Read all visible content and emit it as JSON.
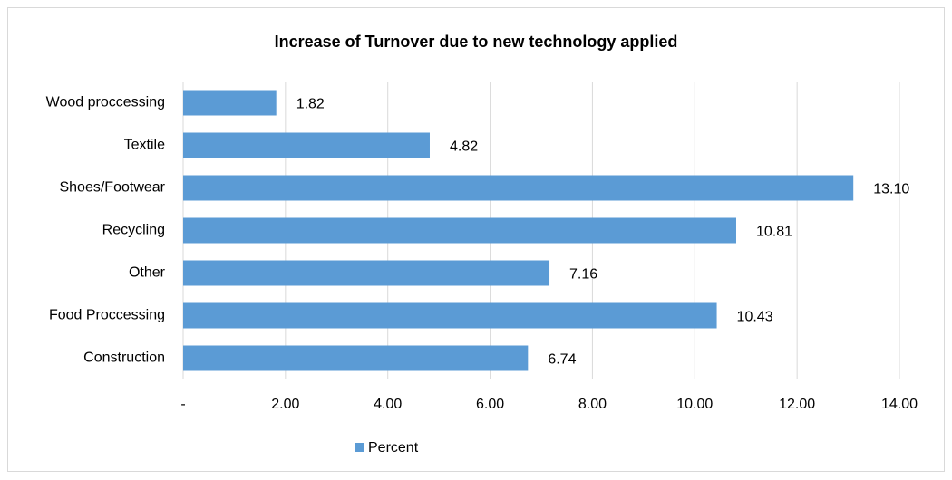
{
  "chart_data": {
    "type": "bar",
    "orientation": "horizontal",
    "title": "Increase of Turnover due to new technology applied",
    "categories": [
      "Wood proccessing",
      "Textile",
      "Shoes/Footwear",
      "Recycling",
      "Other",
      "Food Proccessing",
      "Construction"
    ],
    "series": [
      {
        "name": "Percent",
        "color": "#5b9bd5",
        "values": [
          1.82,
          4.82,
          13.1,
          10.81,
          7.16,
          10.43,
          6.74
        ],
        "value_labels": [
          "1.82",
          "4.82",
          "13.10",
          "10.81",
          "7.16",
          "10.43",
          "6.74"
        ]
      }
    ],
    "xlim": [
      0,
      14
    ],
    "xticks": [
      {
        "value": 0,
        "label": "-"
      },
      {
        "value": 2,
        "label": "2.00"
      },
      {
        "value": 4,
        "label": "4.00"
      },
      {
        "value": 6,
        "label": "6.00"
      },
      {
        "value": 8,
        "label": "8.00"
      },
      {
        "value": 10,
        "label": "10.00"
      },
      {
        "value": 12,
        "label": "12.00"
      },
      {
        "value": 14,
        "label": "14.00"
      }
    ],
    "grid": true,
    "legend": "bottom"
  }
}
